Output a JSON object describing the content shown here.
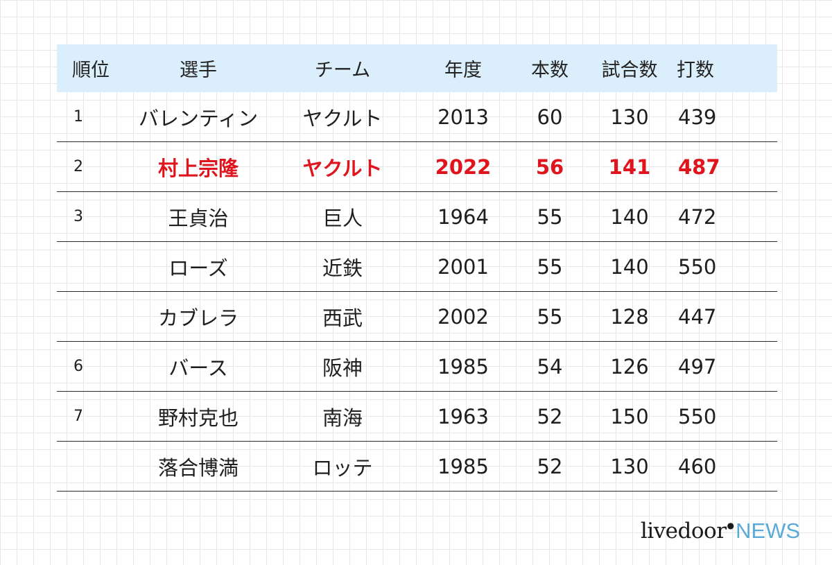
{
  "headers": {
    "rank": "順位",
    "player": "選手",
    "team": "チーム",
    "year": "年度",
    "homeruns": "本数",
    "games": "試合数",
    "at_bats": "打数"
  },
  "rows": [
    {
      "rank": "1",
      "player": "バレンティン",
      "team": "ヤクルト",
      "year": "2013",
      "homeruns": "60",
      "games": "130",
      "at_bats": "439"
    },
    {
      "rank": "2",
      "player": "村上宗隆",
      "team": "ヤクルト",
      "year": "2022",
      "homeruns": "56",
      "games": "141",
      "at_bats": "487"
    },
    {
      "rank": "3",
      "player": "王貞治",
      "team": "巨人",
      "year": "1964",
      "homeruns": "55",
      "games": "140",
      "at_bats": "472"
    },
    {
      "rank": "",
      "player": "ローズ",
      "team": "近鉄",
      "year": "2001",
      "homeruns": "55",
      "games": "140",
      "at_bats": "550"
    },
    {
      "rank": "",
      "player": "カブレラ",
      "team": "西武",
      "year": "2002",
      "homeruns": "55",
      "games": "128",
      "at_bats": "447"
    },
    {
      "rank": "6",
      "player": "バース",
      "team": "阪神",
      "year": "1985",
      "homeruns": "54",
      "games": "126",
      "at_bats": "497"
    },
    {
      "rank": "7",
      "player": "野村克也",
      "team": "南海",
      "year": "1963",
      "homeruns": "52",
      "games": "150",
      "at_bats": "550"
    },
    {
      "rank": "",
      "player": "落合博満",
      "team": "ロッテ",
      "year": "1985",
      "homeruns": "52",
      "games": "130",
      "at_bats": "460"
    }
  ],
  "highlight_color": "#e0141c",
  "header_bg_color": "#dbeefb",
  "brand": {
    "main": "livedoor",
    "mark": "●",
    "accent": "NEWS",
    "accent_color": "#5aa9d6"
  }
}
